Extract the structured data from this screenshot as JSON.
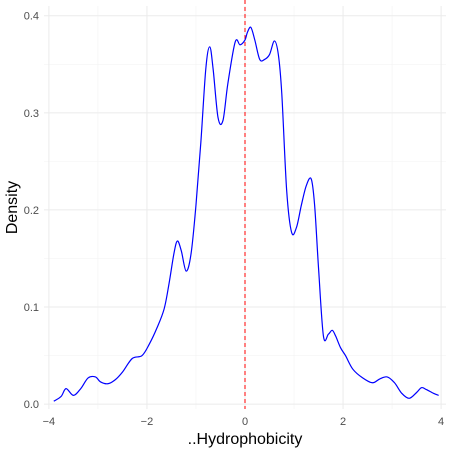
{
  "chart_data": {
    "type": "line",
    "title": "",
    "xlabel": "..Hydrophobicity",
    "ylabel": "Density",
    "xlim": [
      -4.1,
      4.1
    ],
    "ylim": [
      -0.005,
      0.41
    ],
    "x_ticks": [
      -4,
      -2,
      0,
      2,
      4
    ],
    "x_tick_labels": [
      "−4",
      "−2",
      "0",
      "2",
      "4"
    ],
    "y_ticks": [
      0.0,
      0.1,
      0.2,
      0.3,
      0.4
    ],
    "y_tick_labels": [
      "0.0",
      "0.1",
      "0.2",
      "0.3",
      "0.4"
    ],
    "grid": true,
    "legend": "none",
    "reference_line": {
      "x": 0,
      "style": "dashed",
      "color": "#ff0000"
    },
    "series": [
      {
        "color": "#0000ff",
        "x": [
          -3.9,
          -3.75,
          -3.65,
          -3.5,
          -3.35,
          -3.2,
          -3.05,
          -2.95,
          -2.8,
          -2.65,
          -2.5,
          -2.3,
          -2.1,
          -1.95,
          -1.8,
          -1.65,
          -1.55,
          -1.45,
          -1.38,
          -1.3,
          -1.2,
          -1.1,
          -1.0,
          -0.9,
          -0.8,
          -0.72,
          -0.65,
          -0.55,
          -0.45,
          -0.35,
          -0.2,
          -0.1,
          0.0,
          0.05,
          0.12,
          0.2,
          0.3,
          0.4,
          0.5,
          0.6,
          0.68,
          0.75,
          0.85,
          0.95,
          1.05,
          1.15,
          1.25,
          1.35,
          1.42,
          1.5,
          1.6,
          1.7,
          1.78,
          1.85,
          1.95,
          2.05,
          2.2,
          2.4,
          2.6,
          2.75,
          2.9,
          3.05,
          3.2,
          3.35,
          3.5,
          3.6,
          3.7,
          3.85,
          3.95
        ],
        "y": [
          0.003,
          0.008,
          0.016,
          0.009,
          0.016,
          0.027,
          0.028,
          0.023,
          0.021,
          0.025,
          0.033,
          0.047,
          0.05,
          0.062,
          0.078,
          0.098,
          0.124,
          0.155,
          0.168,
          0.158,
          0.137,
          0.155,
          0.205,
          0.27,
          0.345,
          0.368,
          0.345,
          0.295,
          0.292,
          0.33,
          0.373,
          0.37,
          0.375,
          0.383,
          0.388,
          0.375,
          0.355,
          0.355,
          0.36,
          0.374,
          0.36,
          0.32,
          0.22,
          0.177,
          0.182,
          0.205,
          0.225,
          0.232,
          0.205,
          0.14,
          0.07,
          0.072,
          0.076,
          0.07,
          0.058,
          0.05,
          0.036,
          0.027,
          0.022,
          0.026,
          0.028,
          0.022,
          0.011,
          0.006,
          0.012,
          0.017,
          0.015,
          0.011,
          0.009
        ]
      }
    ]
  }
}
